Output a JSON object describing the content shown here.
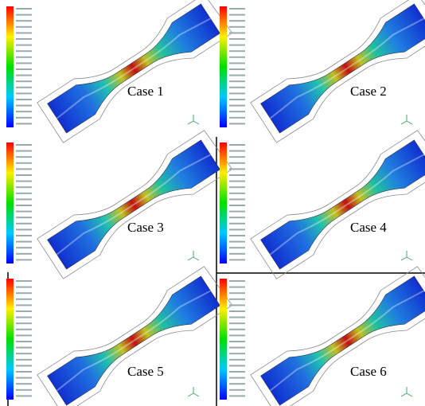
{
  "panels": [
    {
      "label": "Case 1"
    },
    {
      "label": "Case 2"
    },
    {
      "label": "Case 3"
    },
    {
      "label": "Case 4"
    },
    {
      "label": "Case 5"
    },
    {
      "label": "Case 6"
    }
  ]
}
